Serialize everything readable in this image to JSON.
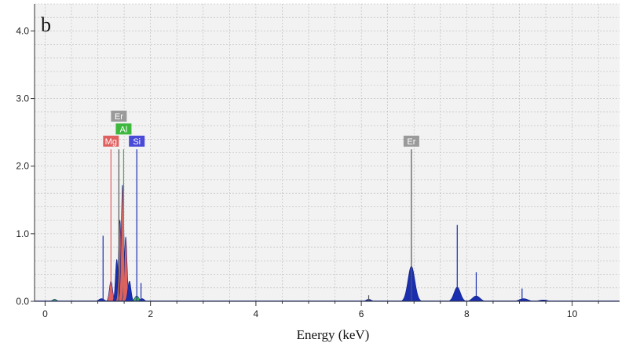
{
  "chart_data": {
    "type": "area",
    "panel_label": "b",
    "title": "",
    "xlabel": "Energy (keV)",
    "ylabel": "",
    "xlim": [
      -0.2,
      10.9
    ],
    "ylim": [
      0,
      4.4
    ],
    "x_ticks": [
      0,
      2,
      4,
      6,
      8,
      10
    ],
    "y_ticks": [
      0.0,
      1.0,
      2.0,
      3.0,
      4.0
    ],
    "grid": true,
    "colors": {
      "background": "#f2f2f2",
      "grid": "#b8b8b8",
      "spectrum": "#1a2fb0",
      "mg": "#e06060",
      "al": "#3db83d",
      "si": "#4a4ad8",
      "er": "#9a9a9a"
    },
    "peaks": [
      {
        "x": 0.18,
        "y": 0.03,
        "w": 0.04,
        "color": "#3db83d"
      },
      {
        "x": 1.07,
        "y": 0.04,
        "w": 0.05,
        "color": "#1a2fb0"
      },
      {
        "x": 1.25,
        "y": 0.3,
        "w": 0.03,
        "color": "#e06060"
      },
      {
        "x": 1.36,
        "y": 0.62,
        "w": 0.025,
        "color": "#1a2fb0"
      },
      {
        "x": 1.42,
        "y": 1.2,
        "w": 0.025,
        "color": "#e06060"
      },
      {
        "x": 1.47,
        "y": 1.72,
        "w": 0.025,
        "color": "#e06060"
      },
      {
        "x": 1.53,
        "y": 0.95,
        "w": 0.025,
        "color": "#e06060"
      },
      {
        "x": 1.6,
        "y": 0.3,
        "w": 0.03,
        "color": "#1a2fb0"
      },
      {
        "x": 1.74,
        "y": 0.08,
        "w": 0.04,
        "color": "#3db83d"
      },
      {
        "x": 1.84,
        "y": 0.04,
        "w": 0.04,
        "color": "#1a2fb0"
      },
      {
        "x": 6.14,
        "y": 0.03,
        "w": 0.05,
        "color": "#1a2fb0"
      },
      {
        "x": 6.95,
        "y": 0.52,
        "w": 0.065,
        "color": "#1a2fb0"
      },
      {
        "x": 7.82,
        "y": 0.21,
        "w": 0.06,
        "color": "#1a2fb0"
      },
      {
        "x": 8.18,
        "y": 0.08,
        "w": 0.07,
        "color": "#1a2fb0"
      },
      {
        "x": 9.08,
        "y": 0.04,
        "w": 0.08,
        "color": "#1a2fb0"
      },
      {
        "x": 9.45,
        "y": 0.02,
        "w": 0.08,
        "color": "#1a2fb0"
      }
    ],
    "lines": [
      {
        "x": 1.1,
        "y": 0.97,
        "color": "#1a2fb0"
      },
      {
        "x": 1.25,
        "y": 2.25,
        "color": "#e06060"
      },
      {
        "x": 1.4,
        "y": 2.25,
        "color": "#555555"
      },
      {
        "x": 1.49,
        "y": 2.25,
        "color": "#3db83d"
      },
      {
        "x": 1.74,
        "y": 2.25,
        "color": "#1a2fb0"
      },
      {
        "x": 1.82,
        "y": 0.27,
        "color": "#1a2fb0"
      },
      {
        "x": 6.14,
        "y": 0.09,
        "color": "#555555"
      },
      {
        "x": 6.95,
        "y": 2.25,
        "color": "#555555"
      },
      {
        "x": 7.82,
        "y": 1.13,
        "color": "#1a2fb0"
      },
      {
        "x": 8.18,
        "y": 0.43,
        "color": "#1a2fb0"
      },
      {
        "x": 9.05,
        "y": 0.19,
        "color": "#1a2fb0"
      }
    ],
    "element_labels": [
      {
        "text": "Er",
        "x": 1.4,
        "y": 2.74,
        "fill": "#9a9a9a",
        "textColor": "#ffffff"
      },
      {
        "text": "Al",
        "x": 1.49,
        "y": 2.55,
        "fill": "#3db83d",
        "textColor": "#ffffff"
      },
      {
        "text": "Mg",
        "x": 1.25,
        "y": 2.37,
        "fill": "#e06060",
        "textColor": "#ffffff"
      },
      {
        "text": "Si",
        "x": 1.74,
        "y": 2.37,
        "fill": "#4a4ad8",
        "textColor": "#ffffff"
      },
      {
        "text": "Er",
        "x": 6.95,
        "y": 2.37,
        "fill": "#9a9a9a",
        "textColor": "#ffffff"
      }
    ]
  }
}
